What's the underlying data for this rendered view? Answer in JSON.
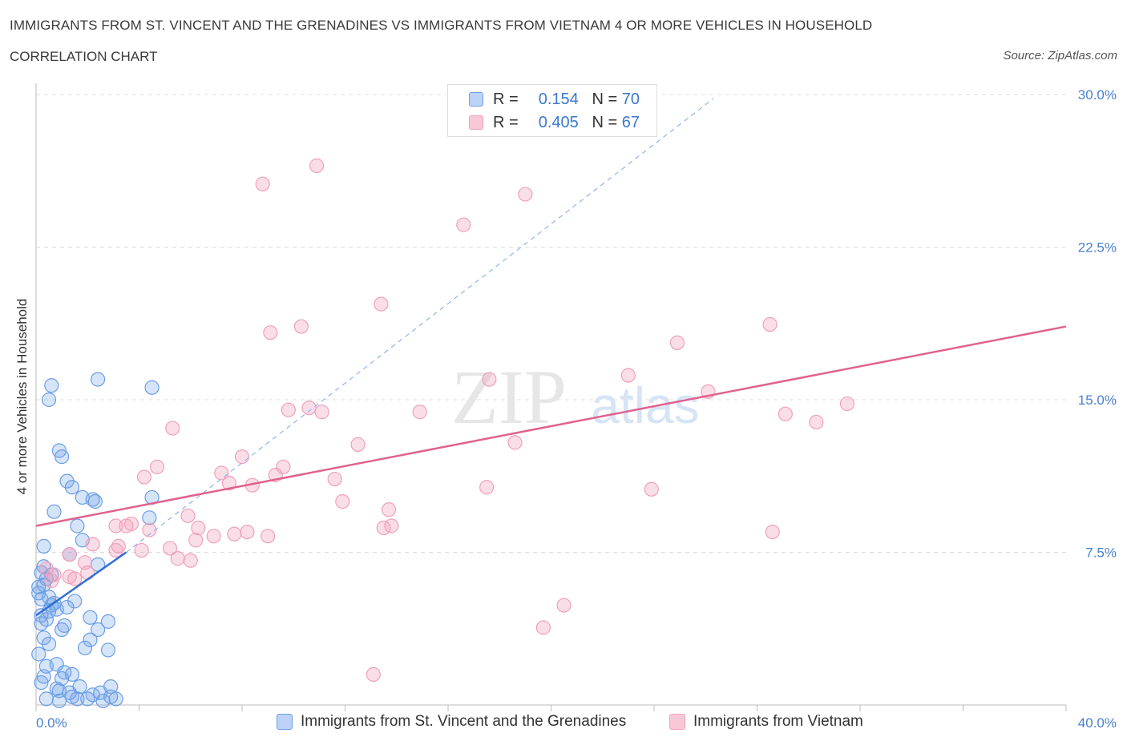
{
  "header": {
    "title": "IMMIGRANTS FROM ST. VINCENT AND THE GRENADINES VS IMMIGRANTS FROM VIETNAM 4 OR MORE VEHICLES IN HOUSEHOLD",
    "subtitle": "CORRELATION CHART",
    "source": "Source: ZipAtlas.com"
  },
  "legend": {
    "r_label": "R =",
    "n_label": "N =",
    "rows": [
      {
        "r": "0.154",
        "n": "70"
      },
      {
        "r": "0.405",
        "n": "67"
      }
    ]
  },
  "colors": {
    "blue": "#6a9ee6",
    "blue_line": "#2f6fd6",
    "pink": "#f0a0ba",
    "pink_line": "#e0628e",
    "grid": "#dcdcdc",
    "tick_text": "#4a7fd1"
  },
  "watermark": {
    "zip": "ZIP",
    "atlas": "atlas"
  },
  "chart_data": {
    "type": "scatter",
    "xlabel": "",
    "ylabel": "4 or more Vehicles in Household",
    "xlim": [
      0,
      40
    ],
    "ylim": [
      0,
      30
    ],
    "x_tick_labels": [
      {
        "value": 0,
        "label": "0.0%"
      },
      {
        "value": 40,
        "label": "40.0%"
      }
    ],
    "y_tick_labels": [
      {
        "value": 7.5,
        "label": "7.5%"
      },
      {
        "value": 15,
        "label": "15.0%"
      },
      {
        "value": 22.5,
        "label": "22.5%"
      },
      {
        "value": 30,
        "label": "30.0%"
      }
    ],
    "series": [
      {
        "name": "Immigrants from St. Vincent and the Grenadines",
        "color": "#6a9ee6",
        "trend": {
          "x": [
            0,
            3.5
          ],
          "y": [
            4.4,
            7.5
          ],
          "dashed_extension": {
            "x": [
              3.5,
              26.3
            ],
            "y": [
              7.5,
              29.8
            ]
          }
        },
        "points": [
          [
            0.6,
            15.7
          ],
          [
            2.4,
            16.0
          ],
          [
            4.5,
            15.6
          ],
          [
            0.5,
            15.0
          ],
          [
            1.0,
            12.2
          ],
          [
            0.9,
            12.5
          ],
          [
            1.2,
            11.0
          ],
          [
            1.4,
            10.7
          ],
          [
            1.8,
            10.2
          ],
          [
            2.2,
            10.1
          ],
          [
            4.5,
            10.2
          ],
          [
            2.3,
            10.0
          ],
          [
            0.7,
            9.5
          ],
          [
            4.4,
            9.2
          ],
          [
            1.6,
            8.8
          ],
          [
            1.8,
            8.1
          ],
          [
            0.3,
            7.8
          ],
          [
            1.3,
            7.4
          ],
          [
            2.4,
            6.9
          ],
          [
            0.2,
            6.5
          ],
          [
            0.6,
            6.4
          ],
          [
            0.4,
            6.2
          ],
          [
            0.3,
            5.9
          ],
          [
            0.1,
            5.5
          ],
          [
            0.2,
            5.2
          ],
          [
            0.7,
            5.0
          ],
          [
            1.2,
            4.8
          ],
          [
            0.5,
            4.6
          ],
          [
            0.8,
            4.7
          ],
          [
            0.2,
            4.4
          ],
          [
            0.4,
            4.2
          ],
          [
            2.1,
            4.3
          ],
          [
            2.8,
            4.1
          ],
          [
            1.0,
            3.7
          ],
          [
            2.4,
            3.7
          ],
          [
            0.3,
            3.3
          ],
          [
            2.1,
            3.2
          ],
          [
            0.5,
            3.0
          ],
          [
            1.9,
            2.8
          ],
          [
            2.8,
            2.7
          ],
          [
            0.4,
            1.9
          ],
          [
            0.8,
            2.0
          ],
          [
            1.1,
            1.6
          ],
          [
            1.4,
            1.5
          ],
          [
            0.2,
            1.1
          ],
          [
            1.0,
            1.3
          ],
          [
            2.9,
            0.9
          ],
          [
            0.9,
            0.7
          ],
          [
            1.3,
            0.6
          ],
          [
            2.2,
            0.5
          ],
          [
            2.5,
            0.6
          ],
          [
            1.4,
            0.4
          ],
          [
            2.0,
            0.3
          ],
          [
            2.9,
            0.4
          ],
          [
            3.1,
            0.3
          ],
          [
            0.4,
            0.3
          ],
          [
            0.9,
            0.2
          ],
          [
            1.6,
            0.3
          ],
          [
            0.1,
            5.8
          ],
          [
            0.3,
            6.8
          ],
          [
            0.6,
            4.9
          ],
          [
            1.5,
            5.1
          ],
          [
            0.2,
            4.0
          ],
          [
            0.8,
            0.8
          ],
          [
            1.7,
            0.9
          ],
          [
            2.6,
            0.2
          ],
          [
            0.1,
            2.5
          ],
          [
            0.3,
            1.4
          ],
          [
            1.1,
            3.9
          ],
          [
            0.5,
            5.3
          ]
        ]
      },
      {
        "name": "Immigrants from Vietnam",
        "color": "#f0a0ba",
        "trend": {
          "x": [
            0,
            40
          ],
          "y": [
            8.8,
            18.6
          ]
        },
        "points": [
          [
            10.9,
            26.5
          ],
          [
            8.8,
            25.6
          ],
          [
            19.0,
            25.1
          ],
          [
            16.6,
            23.6
          ],
          [
            13.4,
            19.7
          ],
          [
            9.1,
            18.3
          ],
          [
            10.3,
            18.6
          ],
          [
            24.9,
            17.8
          ],
          [
            28.5,
            18.7
          ],
          [
            17.6,
            16.0
          ],
          [
            23.0,
            16.2
          ],
          [
            26.1,
            15.4
          ],
          [
            31.5,
            14.8
          ],
          [
            9.8,
            14.5
          ],
          [
            10.6,
            14.6
          ],
          [
            11.1,
            14.4
          ],
          [
            14.9,
            14.4
          ],
          [
            29.1,
            14.3
          ],
          [
            30.3,
            13.9
          ],
          [
            5.3,
            13.6
          ],
          [
            12.5,
            12.8
          ],
          [
            18.6,
            12.9
          ],
          [
            8.0,
            12.2
          ],
          [
            4.7,
            11.7
          ],
          [
            9.6,
            11.7
          ],
          [
            4.2,
            11.2
          ],
          [
            7.2,
            11.4
          ],
          [
            9.3,
            11.3
          ],
          [
            11.6,
            11.1
          ],
          [
            7.5,
            10.9
          ],
          [
            8.4,
            10.8
          ],
          [
            17.5,
            10.7
          ],
          [
            23.9,
            10.6
          ],
          [
            11.9,
            10.0
          ],
          [
            13.7,
            9.6
          ],
          [
            5.9,
            9.3
          ],
          [
            3.1,
            8.8
          ],
          [
            3.7,
            8.9
          ],
          [
            6.3,
            8.7
          ],
          [
            8.2,
            8.5
          ],
          [
            3.5,
            8.8
          ],
          [
            4.4,
            8.6
          ],
          [
            7.7,
            8.4
          ],
          [
            13.8,
            8.8
          ],
          [
            13.5,
            8.7
          ],
          [
            9.0,
            8.3
          ],
          [
            6.9,
            8.3
          ],
          [
            2.2,
            7.9
          ],
          [
            6.2,
            8.1
          ],
          [
            3.2,
            7.8
          ],
          [
            3.1,
            7.6
          ],
          [
            4.1,
            7.6
          ],
          [
            5.2,
            7.7
          ],
          [
            5.5,
            7.2
          ],
          [
            6.0,
            7.1
          ],
          [
            1.3,
            7.4
          ],
          [
            1.9,
            7.0
          ],
          [
            2.0,
            6.5
          ],
          [
            1.3,
            6.3
          ],
          [
            0.7,
            6.4
          ],
          [
            0.4,
            6.7
          ],
          [
            0.6,
            6.1
          ],
          [
            28.6,
            8.5
          ],
          [
            20.5,
            4.9
          ],
          [
            19.7,
            3.8
          ],
          [
            13.1,
            1.5
          ],
          [
            1.5,
            6.2
          ]
        ]
      }
    ]
  },
  "bottom_legend": {
    "items": [
      {
        "label": "Immigrants from St. Vincent and the Grenadines"
      },
      {
        "label": "Immigrants from Vietnam"
      }
    ]
  }
}
